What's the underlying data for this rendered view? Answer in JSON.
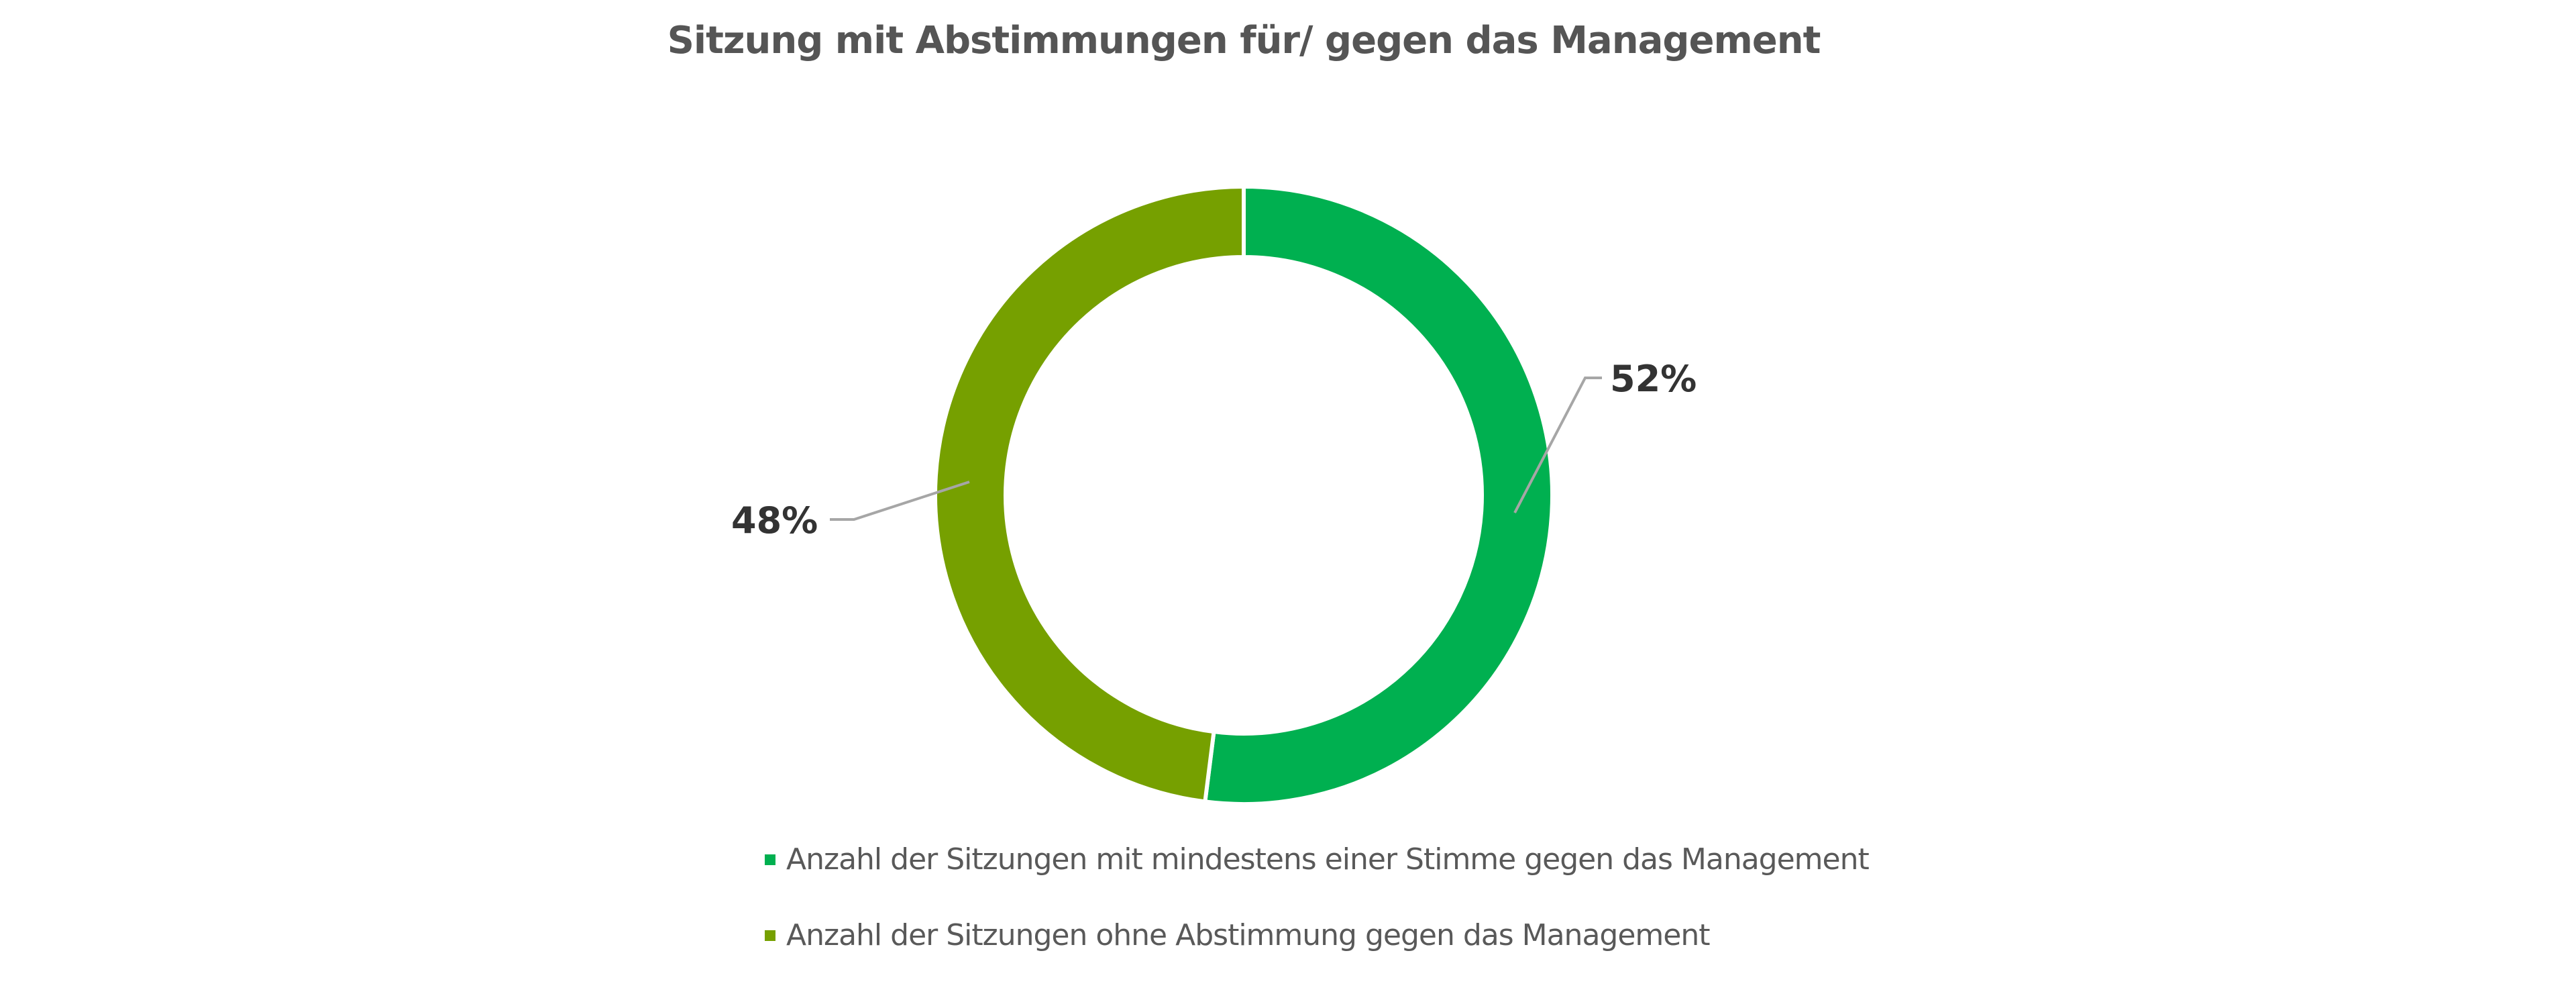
{
  "chart_data": {
    "type": "pie",
    "variant": "donut",
    "title": "Sitzung mit Abstimmungen für/ gegen das Management",
    "legend_position": "bottom",
    "series": [
      {
        "name": "Anzahl der Sitzungen mit mindestens einer Stimme gegen das Management",
        "value": 52,
        "label": "52%",
        "color": "#00B050"
      },
      {
        "name": "Anzahl der Sitzungen ohne Abstimmung gegen das Management",
        "value": 48,
        "label": "48%",
        "color": "#76A000"
      }
    ]
  }
}
